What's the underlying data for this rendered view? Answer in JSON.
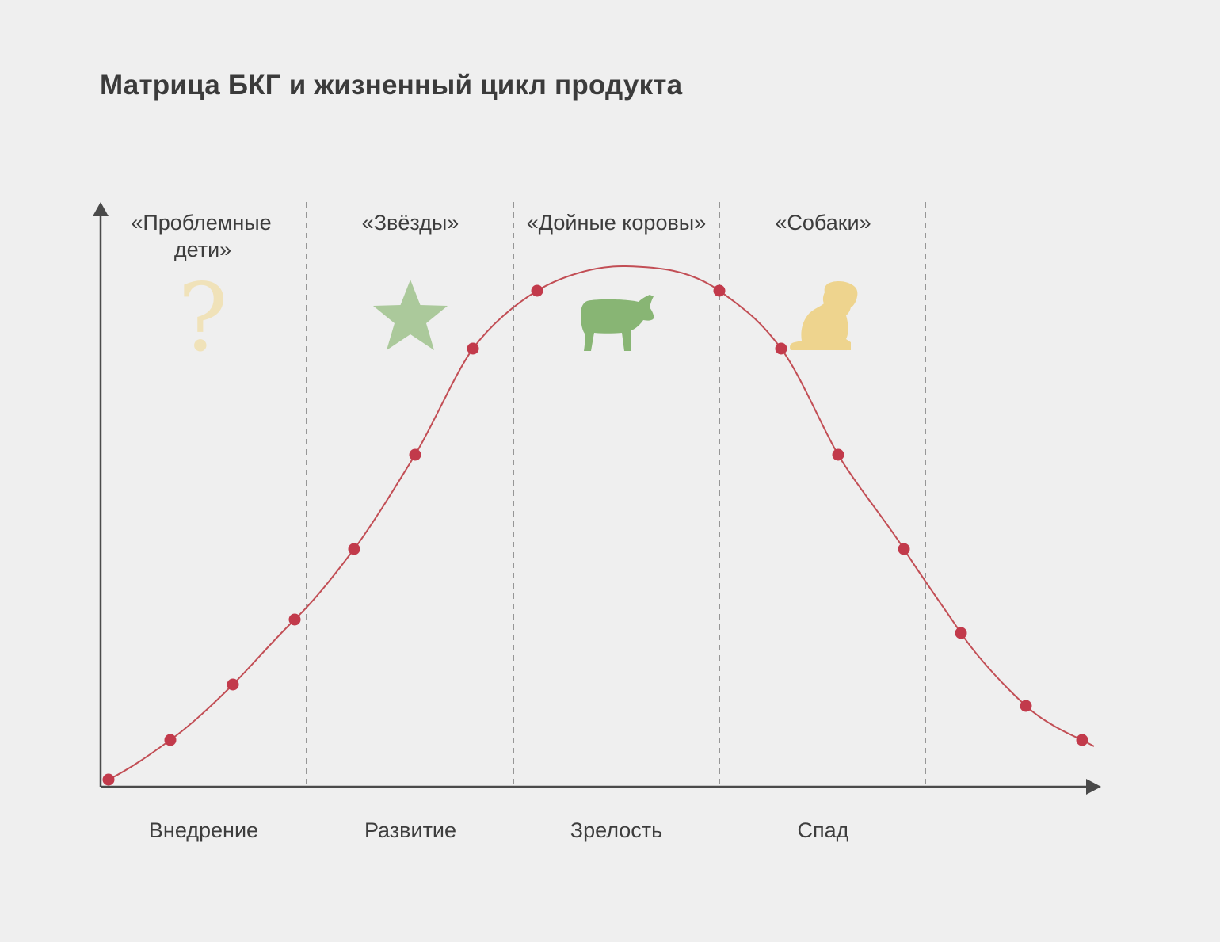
{
  "title": "Матрица БКГ и жизненный цикл продукта",
  "segments": [
    {
      "label_line1": "«Проблемные",
      "label_line2": "дети»",
      "icon": "question-mark-icon",
      "icon_glyph": "?",
      "color": "#f0e2b9"
    },
    {
      "label_line1": "«Звёзды»",
      "label_line2": "",
      "icon": "star-icon",
      "color": "#abc99b"
    },
    {
      "label_line1": "«Дойные коровы»",
      "label_line2": "",
      "icon": "cow-icon",
      "color": "#88b574"
    },
    {
      "label_line1": "«Собаки»",
      "label_line2": "",
      "icon": "dog-icon",
      "color": "#eed48e"
    }
  ],
  "stages": [
    "Внедрение",
    "Развитие",
    "Зрелость",
    "Спад"
  ],
  "colors": {
    "curve": "#c24e55",
    "point": "#c23a4b",
    "axis": "#4a4a4a",
    "divider": "#808080",
    "background": "#efefef"
  }
}
